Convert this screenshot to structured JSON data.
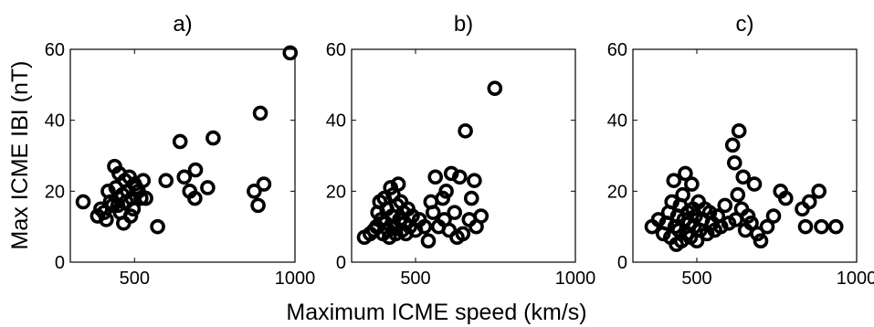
{
  "figure": {
    "xlabel": "Maximum ICME speed (km/s)",
    "ylabel": "Max ICME IBI (nT)"
  },
  "chart_data": [
    {
      "type": "scatter",
      "title": "a)",
      "xlabel": "Maximum ICME speed (km/s)",
      "ylabel": "Max ICME IBI (nT)",
      "xlim": [
        300,
        1000
      ],
      "ylim": [
        0,
        60
      ],
      "xticks": [
        500,
        1000
      ],
      "yticks": [
        0,
        20,
        40,
        60
      ],
      "grid": false,
      "marker": "open-circle",
      "series": [
        {
          "points": [
            [
              340,
              17
            ],
            [
              385,
              13
            ],
            [
              395,
              15
            ],
            [
              405,
              14
            ],
            [
              412,
              12
            ],
            [
              418,
              20
            ],
            [
              425,
              17
            ],
            [
              432,
              16
            ],
            [
              438,
              27
            ],
            [
              442,
              21
            ],
            [
              448,
              16
            ],
            [
              452,
              25
            ],
            [
              456,
              14
            ],
            [
              462,
              19
            ],
            [
              466,
              11
            ],
            [
              470,
              23
            ],
            [
              474,
              17
            ],
            [
              478,
              20
            ],
            [
              484,
              24
            ],
            [
              488,
              13
            ],
            [
              492,
              18
            ],
            [
              496,
              15
            ],
            [
              500,
              22
            ],
            [
              505,
              21
            ],
            [
              512,
              20
            ],
            [
              520,
              18
            ],
            [
              527,
              23
            ],
            [
              535,
              18
            ],
            [
              572,
              10
            ],
            [
              598,
              23
            ],
            [
              642,
              34
            ],
            [
              655,
              24
            ],
            [
              672,
              20
            ],
            [
              688,
              18
            ],
            [
              690,
              26
            ],
            [
              728,
              21
            ],
            [
              745,
              35
            ],
            [
              873,
              20
            ],
            [
              885,
              16
            ],
            [
              892,
              42
            ],
            [
              903,
              22
            ],
            [
              985,
              59
            ]
          ]
        }
      ]
    },
    {
      "type": "scatter",
      "title": "b)",
      "xlabel": "",
      "ylabel": "",
      "xlim": [
        300,
        1000
      ],
      "ylim": [
        0,
        60
      ],
      "xticks": [
        500,
        1000
      ],
      "yticks": [
        0,
        20,
        40,
        60
      ],
      "grid": false,
      "marker": "open-circle",
      "series": [
        {
          "points": [
            [
              340,
              7
            ],
            [
              358,
              8
            ],
            [
              370,
              9
            ],
            [
              378,
              10
            ],
            [
              382,
              14
            ],
            [
              388,
              17
            ],
            [
              392,
              12
            ],
            [
              398,
              8
            ],
            [
              402,
              18
            ],
            [
              406,
              11
            ],
            [
              410,
              15
            ],
            [
              414,
              9
            ],
            [
              418,
              7
            ],
            [
              422,
              21
            ],
            [
              426,
              13
            ],
            [
              430,
              19
            ],
            [
              434,
              10
            ],
            [
              438,
              8
            ],
            [
              442,
              16
            ],
            [
              446,
              22
            ],
            [
              450,
              12
            ],
            [
              454,
              17
            ],
            [
              458,
              9
            ],
            [
              462,
              14
            ],
            [
              466,
              11
            ],
            [
              470,
              8
            ],
            [
              476,
              15
            ],
            [
              482,
              10
            ],
            [
              490,
              13
            ],
            [
              500,
              9
            ],
            [
              512,
              12
            ],
            [
              528,
              10
            ],
            [
              540,
              6
            ],
            [
              548,
              17
            ],
            [
              555,
              14
            ],
            [
              562,
              24
            ],
            [
              572,
              10
            ],
            [
              585,
              18
            ],
            [
              590,
              12
            ],
            [
              596,
              20
            ],
            [
              605,
              9
            ],
            [
              612,
              25
            ],
            [
              622,
              14
            ],
            [
              630,
              7
            ],
            [
              638,
              24
            ],
            [
              648,
              8
            ],
            [
              656,
              37
            ],
            [
              668,
              12
            ],
            [
              675,
              18
            ],
            [
              684,
              23
            ],
            [
              690,
              10
            ],
            [
              705,
              13
            ],
            [
              748,
              49
            ]
          ]
        }
      ]
    },
    {
      "type": "scatter",
      "title": "c)",
      "xlabel": "",
      "ylabel": "",
      "xlim": [
        300,
        1000
      ],
      "ylim": [
        0,
        60
      ],
      "xticks": [
        500,
        1000
      ],
      "yticks": [
        0,
        20,
        40,
        60
      ],
      "grid": false,
      "marker": "open-circle",
      "series": [
        {
          "points": [
            [
              360,
              10
            ],
            [
              380,
              12
            ],
            [
              395,
              8
            ],
            [
              405,
              11
            ],
            [
              412,
              14
            ],
            [
              418,
              7
            ],
            [
              422,
              17
            ],
            [
              428,
              23
            ],
            [
              432,
              10
            ],
            [
              436,
              5
            ],
            [
              440,
              13
            ],
            [
              444,
              9
            ],
            [
              448,
              16
            ],
            [
              452,
              6
            ],
            [
              456,
              19
            ],
            [
              460,
              12
            ],
            [
              464,
              25
            ],
            [
              468,
              8
            ],
            [
              472,
              14
            ],
            [
              476,
              11
            ],
            [
              480,
              7
            ],
            [
              484,
              22
            ],
            [
              488,
              15
            ],
            [
              492,
              10
            ],
            [
              496,
              13
            ],
            [
              500,
              6
            ],
            [
              505,
              17
            ],
            [
              510,
              9
            ],
            [
              518,
              12
            ],
            [
              525,
              15
            ],
            [
              532,
              8
            ],
            [
              540,
              14
            ],
            [
              548,
              11
            ],
            [
              556,
              9
            ],
            [
              565,
              13
            ],
            [
              575,
              10
            ],
            [
              588,
              16
            ],
            [
              600,
              11
            ],
            [
              612,
              33
            ],
            [
              618,
              28
            ],
            [
              622,
              12
            ],
            [
              628,
              19
            ],
            [
              632,
              37
            ],
            [
              640,
              15
            ],
            [
              645,
              24
            ],
            [
              652,
              9
            ],
            [
              660,
              13
            ],
            [
              670,
              11
            ],
            [
              680,
              22
            ],
            [
              690,
              8
            ],
            [
              700,
              6
            ],
            [
              720,
              10
            ],
            [
              740,
              13
            ],
            [
              762,
              20
            ],
            [
              778,
              18
            ],
            [
              830,
              15
            ],
            [
              840,
              10
            ],
            [
              852,
              17
            ],
            [
              882,
              20
            ],
            [
              890,
              10
            ],
            [
              935,
              10
            ]
          ]
        }
      ]
    }
  ]
}
